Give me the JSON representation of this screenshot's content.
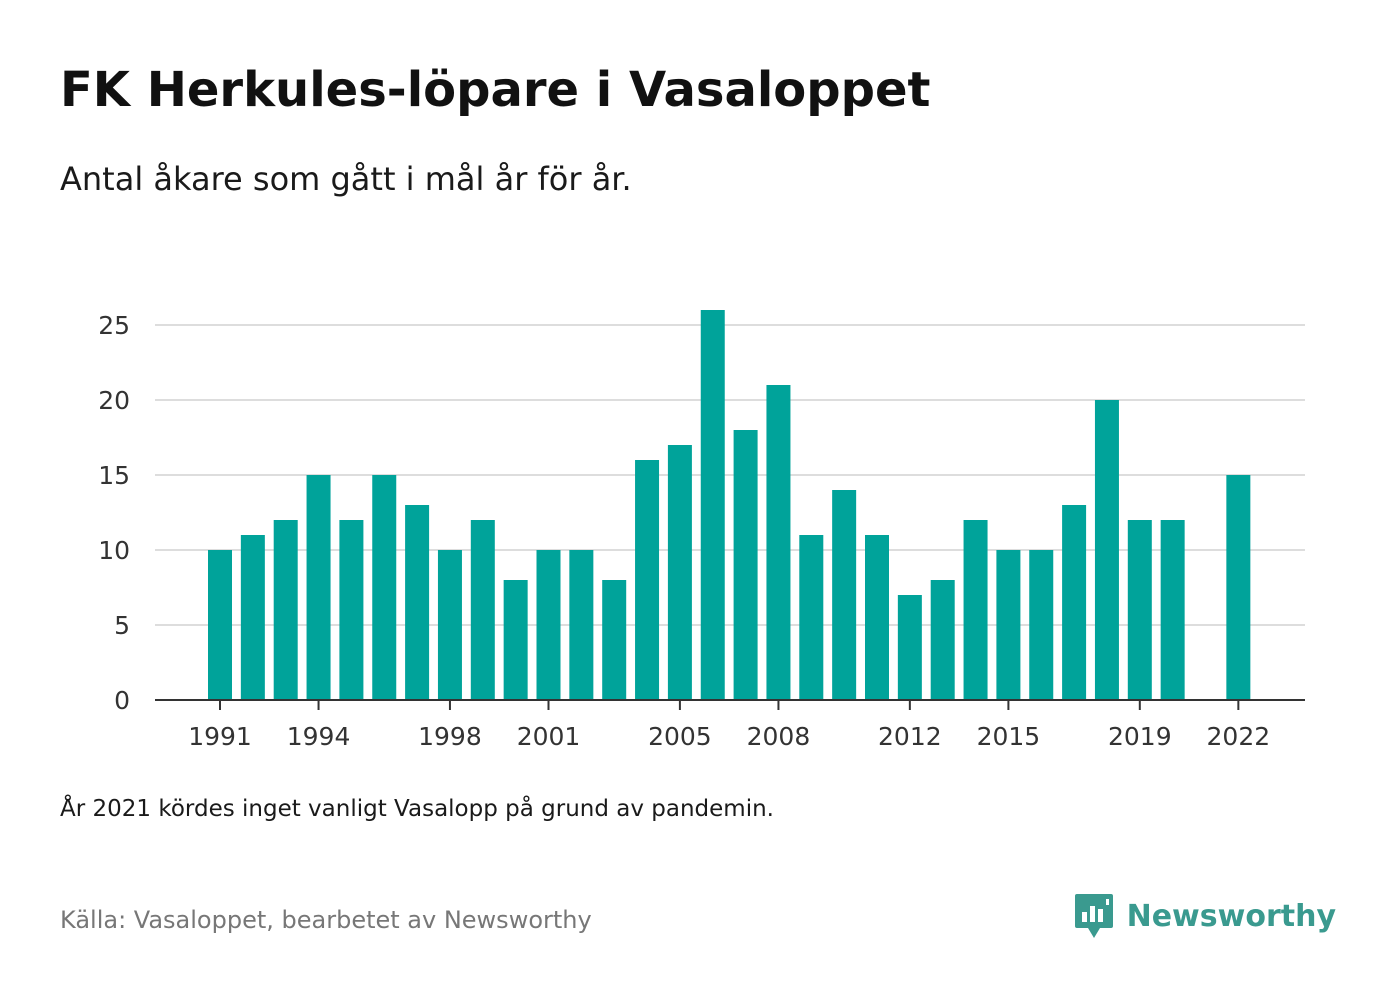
{
  "title": "FK Herkules-löpare i Vasaloppet",
  "subtitle": "Antal åkare som gått i mål år för år.",
  "note": "År 2021 kördes inget vanligt Vasalopp på grund av pandemin.",
  "source": "Källa: Vasaloppet, bearbetet av Newsworthy",
  "brand": {
    "name": "Newsworthy",
    "icon": "newsworthy-logo-icon"
  },
  "colors": {
    "bar": "#00a39a",
    "grid": "#dddddd",
    "axis": "#333333"
  },
  "chart_data": {
    "type": "bar",
    "x": [
      1991,
      1992,
      1993,
      1994,
      1995,
      1996,
      1997,
      1998,
      1999,
      2000,
      2001,
      2002,
      2003,
      2004,
      2005,
      2006,
      2007,
      2008,
      2009,
      2010,
      2011,
      2012,
      2013,
      2014,
      2015,
      2016,
      2017,
      2018,
      2019,
      2020,
      2021,
      2022
    ],
    "values": [
      10,
      11,
      12,
      15,
      12,
      15,
      13,
      10,
      12,
      8,
      10,
      10,
      8,
      16,
      17,
      26,
      18,
      21,
      11,
      14,
      11,
      7,
      8,
      12,
      10,
      10,
      13,
      20,
      12,
      12,
      null,
      15
    ],
    "x_tick_labels": [
      "1991",
      "1994",
      "1998",
      "2001",
      "2005",
      "2008",
      "2012",
      "2015",
      "2019",
      "2022"
    ],
    "y_ticks": [
      0,
      5,
      10,
      15,
      20,
      25
    ],
    "ylim": [
      0,
      26
    ],
    "grid": true,
    "legend": "none"
  }
}
